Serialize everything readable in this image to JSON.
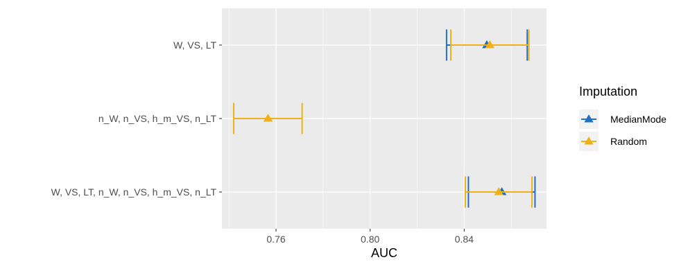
{
  "chart_data": {
    "type": "errorbar",
    "orientation": "horizontal",
    "xlabel": "AUC",
    "ylabel": "",
    "xlim": [
      0.737,
      0.875
    ],
    "x_ticks": [
      0.76,
      0.8,
      0.84
    ],
    "x_tick_labels": [
      "0.76",
      "0.80",
      "0.84"
    ],
    "categories": [
      "W, VS, LT",
      "n_W, n_VS, h_m_VS, n_LT",
      "W, VS, LT, n_W, n_VS, h_m_VS, n_LT"
    ],
    "grid": true,
    "legend": {
      "title": "Imputation",
      "position": "right"
    },
    "series": [
      {
        "name": "MedianMode",
        "color": "#1f6fc5",
        "marker": "triangle",
        "points": [
          {
            "category": "W, VS, LT",
            "value": 0.8496,
            "lower": 0.8325,
            "upper": 0.8668
          },
          {
            "category": "W, VS, LT, n_W, n_VS, h_m_VS, n_LT",
            "value": 0.856,
            "lower": 0.8418,
            "upper": 0.8701
          }
        ]
      },
      {
        "name": "Random",
        "color": "#efb118",
        "marker": "triangle",
        "points": [
          {
            "category": "W, VS, LT",
            "value": 0.8509,
            "lower": 0.8343,
            "upper": 0.8675
          },
          {
            "category": "n_W, n_VS, h_m_VS, n_LT",
            "value": 0.7566,
            "lower": 0.742,
            "upper": 0.7711
          },
          {
            "category": "W, VS, LT, n_W, n_VS, h_m_VS, n_LT",
            "value": 0.8547,
            "lower": 0.8405,
            "upper": 0.8688
          }
        ]
      }
    ]
  }
}
